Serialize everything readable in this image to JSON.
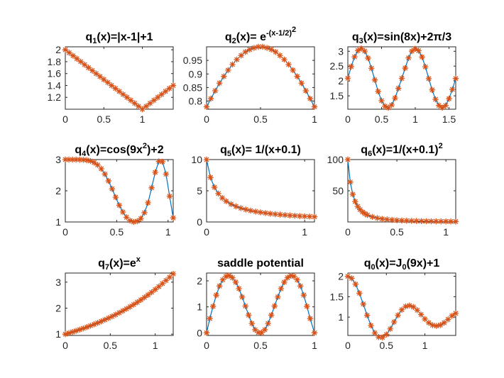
{
  "figure": {
    "background": "#ffffff"
  },
  "style": {
    "line_color": "#0072bd",
    "marker_color": "#d95319",
    "marker_symbol": "*",
    "axes_color": "#262626"
  },
  "chart_data": [
    {
      "type": "line",
      "title": "q_1(x)=|x-1|+1",
      "title_parts": [
        {
          "t": "q"
        },
        {
          "t": "1",
          "sub": true
        },
        {
          "t": "(x)=|x-1|+1"
        }
      ],
      "xlabel": "",
      "ylabel": "",
      "xlim": [
        0,
        1.4
      ],
      "ylim": [
        1.0,
        2.05
      ],
      "xticks": [
        0,
        0.5,
        1
      ],
      "xtick_labels": [
        "0",
        "0.5",
        "1"
      ],
      "yticks": [
        1.2,
        1.4,
        1.6,
        1.8,
        2
      ],
      "ytick_labels": [
        "1.2",
        "1.4",
        "1.6",
        "1.8",
        "2"
      ],
      "x": [
        0,
        0.05,
        0.1,
        0.15,
        0.2,
        0.25,
        0.3,
        0.35,
        0.4,
        0.45,
        0.5,
        0.55,
        0.6,
        0.65,
        0.7,
        0.75,
        0.8,
        0.85,
        0.9,
        0.95,
        1.0,
        1.05,
        1.1,
        1.15,
        1.2,
        1.25,
        1.3,
        1.35,
        1.4
      ],
      "y": [
        2.0,
        1.95,
        1.9,
        1.85,
        1.8,
        1.75,
        1.7,
        1.65,
        1.6,
        1.55,
        1.5,
        1.45,
        1.4,
        1.35,
        1.3,
        1.25,
        1.2,
        1.15,
        1.1,
        1.05,
        1.0,
        1.05,
        1.1,
        1.15,
        1.2,
        1.25,
        1.3,
        1.35,
        1.4
      ]
    },
    {
      "type": "line",
      "title": "q_2(x)= e^-(x-1/2)^2",
      "title_parts": [
        {
          "t": "q"
        },
        {
          "t": "2",
          "sub": true
        },
        {
          "t": "(x)= e"
        },
        {
          "t": "-(x-1/2)",
          "sup": true
        },
        {
          "t": "2",
          "sup2": true
        }
      ],
      "xlabel": "",
      "ylabel": "",
      "xlim": [
        0,
        1
      ],
      "ylim": [
        0.77,
        1.0
      ],
      "xticks": [
        0,
        0.5,
        1
      ],
      "xtick_labels": [
        "0",
        "0.5",
        "1"
      ],
      "yticks": [
        0.8,
        0.85,
        0.9,
        0.95
      ],
      "ytick_labels": [
        "0.8",
        "0.85",
        "0.9",
        "0.95"
      ],
      "x": [
        0,
        0.04,
        0.08,
        0.12,
        0.16,
        0.2,
        0.24,
        0.28,
        0.32,
        0.36,
        0.4,
        0.44,
        0.48,
        0.52,
        0.56,
        0.6,
        0.64,
        0.68,
        0.72,
        0.76,
        0.8,
        0.84,
        0.88,
        0.92,
        0.96,
        1.0
      ],
      "y": [
        0.779,
        0.809,
        0.838,
        0.866,
        0.891,
        0.914,
        0.935,
        0.953,
        0.968,
        0.981,
        0.99,
        0.996,
        1.0,
        1.0,
        0.996,
        0.99,
        0.981,
        0.968,
        0.953,
        0.935,
        0.914,
        0.891,
        0.866,
        0.838,
        0.809,
        0.779
      ]
    },
    {
      "type": "line",
      "title": "q_3(x)=sin(8x)+2π/3",
      "title_parts": [
        {
          "t": "q"
        },
        {
          "t": "3",
          "sub": true
        },
        {
          "t": "(x)=sin(8x)+2π/3"
        }
      ],
      "xlabel": "",
      "ylabel": "",
      "xlim": [
        0,
        1.6
      ],
      "ylim": [
        1.05,
        3.15
      ],
      "xticks": [
        0,
        0.5,
        1,
        1.5
      ],
      "xtick_labels": [
        "0",
        "0.5",
        "1",
        "1.5"
      ],
      "yticks": [
        1.5,
        2,
        2.5,
        3
      ],
      "ytick_labels": [
        "1.5",
        "2",
        "2.5",
        "3"
      ],
      "x": [
        0,
        0.05,
        0.1,
        0.15,
        0.2,
        0.25,
        0.3,
        0.35,
        0.4,
        0.45,
        0.5,
        0.55,
        0.6,
        0.65,
        0.7,
        0.75,
        0.8,
        0.85,
        0.9,
        0.95,
        1.0,
        1.05,
        1.1,
        1.15,
        1.2,
        1.25,
        1.3,
        1.35,
        1.4,
        1.45,
        1.5,
        1.55,
        1.6
      ],
      "y": [
        2.094,
        2.484,
        2.812,
        3.026,
        3.094,
        3.004,
        2.77,
        2.429,
        2.036,
        1.648,
        1.337,
        1.151,
        1.098,
        1.192,
        1.426,
        1.752,
        2.088,
        2.433,
        2.777,
        3.005,
        3.084,
        3.019,
        2.806,
        2.476,
        2.08,
        1.7,
        1.383,
        1.177,
        1.102,
        1.177,
        1.404,
        1.716,
        2.083
      ]
    },
    {
      "type": "line",
      "title": "q_4(x)=cos(9x^2)+2",
      "title_parts": [
        {
          "t": "q"
        },
        {
          "t": "4",
          "sub": true
        },
        {
          "t": "(x)=cos(9x"
        },
        {
          "t": "2",
          "sup": true
        },
        {
          "t": ")+2"
        }
      ],
      "xlabel": "",
      "ylabel": "",
      "xlim": [
        0,
        1.05
      ],
      "ylim": [
        1.0,
        3.0
      ],
      "xticks": [
        0,
        0.5,
        1
      ],
      "xtick_labels": [
        "0",
        "0.5",
        "1"
      ],
      "yticks": [
        1,
        2,
        3
      ],
      "ytick_labels": [
        "1",
        "2",
        "3"
      ],
      "x": [
        0,
        0.035,
        0.07,
        0.105,
        0.14,
        0.175,
        0.21,
        0.245,
        0.28,
        0.315,
        0.35,
        0.385,
        0.42,
        0.455,
        0.49,
        0.525,
        0.56,
        0.595,
        0.63,
        0.665,
        0.7,
        0.735,
        0.77,
        0.805,
        0.84,
        0.875,
        0.91,
        0.945,
        0.98,
        1.015,
        1.05
      ],
      "y": [
        3.0,
        3.0,
        3.0,
        2.999,
        2.997,
        2.992,
        2.98,
        2.954,
        2.906,
        2.827,
        2.705,
        2.535,
        2.317,
        2.063,
        1.793,
        1.535,
        1.318,
        1.151,
        1.044,
        1.003,
        1.025,
        1.111,
        1.297,
        1.617,
        2.095,
        2.591,
        2.942,
        2.932,
        2.534,
        1.827,
        1.131
      ]
    },
    {
      "type": "line",
      "title": "q_5(x)= 1/(x+0.1)",
      "title_parts": [
        {
          "t": "q"
        },
        {
          "t": "5",
          "sub": true
        },
        {
          "t": "(x)= 1/(x+0.1)"
        }
      ],
      "xlabel": "",
      "ylabel": "",
      "xlim": [
        0,
        1.1
      ],
      "ylim": [
        0,
        10
      ],
      "xticks": [
        0,
        1
      ],
      "xtick_labels": [
        "0",
        "1"
      ],
      "yticks": [
        0,
        5,
        10
      ],
      "ytick_labels": [
        "0",
        "5",
        "10"
      ],
      "x": [
        0,
        0.04,
        0.08,
        0.12,
        0.16,
        0.2,
        0.25,
        0.3,
        0.35,
        0.4,
        0.45,
        0.5,
        0.55,
        0.6,
        0.65,
        0.7,
        0.75,
        0.8,
        0.85,
        0.9,
        0.95,
        1.0,
        1.05,
        1.1
      ],
      "y": [
        10.0,
        7.14,
        5.56,
        4.55,
        3.85,
        3.33,
        2.86,
        2.5,
        2.22,
        2.0,
        1.82,
        1.67,
        1.54,
        1.43,
        1.33,
        1.25,
        1.18,
        1.11,
        1.05,
        1.0,
        0.95,
        0.91,
        0.87,
        0.83
      ]
    },
    {
      "type": "line",
      "title": "q_6(x)=1/(x+0.1)^2",
      "title_parts": [
        {
          "t": "q"
        },
        {
          "t": "6",
          "sub": true
        },
        {
          "t": "(x)=1/(x+0.1)"
        },
        {
          "t": "2",
          "sup": true
        }
      ],
      "xlabel": "",
      "ylabel": "",
      "xlim": [
        0,
        1.1
      ],
      "ylim": [
        0,
        100
      ],
      "xticks": [
        0,
        0.5,
        1
      ],
      "xtick_labels": [
        "0",
        "0.5",
        "1"
      ],
      "yticks": [
        50,
        100
      ],
      "ytick_labels": [
        "50",
        "100"
      ],
      "x": [
        0,
        0.025,
        0.05,
        0.075,
        0.1,
        0.125,
        0.15,
        0.175,
        0.2,
        0.25,
        0.3,
        0.35,
        0.4,
        0.45,
        0.5,
        0.55,
        0.6,
        0.65,
        0.7,
        0.75,
        0.8,
        0.85,
        0.9,
        0.95,
        1.0,
        1.05,
        1.1
      ],
      "y": [
        100.0,
        64.0,
        44.4,
        32.7,
        25.0,
        19.8,
        16.0,
        13.2,
        11.1,
        8.16,
        6.25,
        4.94,
        4.0,
        3.31,
        2.78,
        2.37,
        2.04,
        1.78,
        1.56,
        1.38,
        1.23,
        1.11,
        1.0,
        0.91,
        0.83,
        0.76,
        0.69
      ]
    },
    {
      "type": "line",
      "title": "q_7(x)=e^x",
      "title_parts": [
        {
          "t": "q"
        },
        {
          "t": "7",
          "sub": true
        },
        {
          "t": "(x)=e"
        },
        {
          "t": "x",
          "sup": true
        }
      ],
      "xlabel": "",
      "ylabel": "",
      "xlim": [
        0,
        1.2
      ],
      "ylim": [
        0.95,
        3.35
      ],
      "xticks": [
        0,
        0.5,
        1
      ],
      "xtick_labels": [
        "0",
        "0.5",
        "1"
      ],
      "yticks": [
        1,
        2,
        3
      ],
      "ytick_labels": [
        "1",
        "2",
        "3"
      ],
      "x": [
        0,
        0.04,
        0.08,
        0.12,
        0.16,
        0.2,
        0.24,
        0.28,
        0.32,
        0.36,
        0.4,
        0.44,
        0.48,
        0.52,
        0.56,
        0.6,
        0.64,
        0.68,
        0.72,
        0.76,
        0.8,
        0.84,
        0.88,
        0.92,
        0.96,
        1.0,
        1.04,
        1.08,
        1.12,
        1.16,
        1.2
      ],
      "y": [
        1.0,
        1.041,
        1.083,
        1.127,
        1.174,
        1.221,
        1.271,
        1.323,
        1.377,
        1.433,
        1.492,
        1.553,
        1.616,
        1.682,
        1.751,
        1.822,
        1.896,
        1.974,
        2.054,
        2.138,
        2.226,
        2.316,
        2.411,
        2.509,
        2.612,
        2.718,
        2.829,
        2.945,
        3.065,
        3.19,
        3.32
      ]
    },
    {
      "type": "line",
      "title": "saddle potential",
      "title_parts": [
        {
          "t": "saddle potential"
        }
      ],
      "xlabel": "",
      "ylabel": "",
      "xlim": [
        0,
        1
      ],
      "ylim": [
        -0.1,
        2.3
      ],
      "xticks": [
        0,
        0.5,
        1
      ],
      "xtick_labels": [
        "0",
        "0.5",
        "1"
      ],
      "yticks": [
        0,
        1,
        2
      ],
      "ytick_labels": [
        "0",
        "1",
        "2"
      ],
      "x": [
        0,
        0.03,
        0.06,
        0.09,
        0.12,
        0.15,
        0.18,
        0.21,
        0.24,
        0.27,
        0.3,
        0.33,
        0.36,
        0.39,
        0.42,
        0.45,
        0.48,
        0.51,
        0.54,
        0.57,
        0.6,
        0.63,
        0.66,
        0.69,
        0.72,
        0.75,
        0.78,
        0.81,
        0.84,
        0.87,
        0.9,
        0.93,
        0.96,
        1.0
      ],
      "y": [
        0.0,
        0.55,
        1.02,
        1.45,
        1.8,
        2.04,
        2.17,
        2.2,
        2.12,
        1.95,
        1.7,
        1.38,
        1.03,
        0.68,
        0.36,
        0.12,
        0.01,
        0.01,
        0.12,
        0.36,
        0.68,
        1.03,
        1.38,
        1.7,
        1.95,
        2.12,
        2.2,
        2.17,
        2.04,
        1.8,
        1.45,
        1.02,
        0.55,
        0.0
      ]
    },
    {
      "type": "line",
      "title": "q_0(x)=J_0(9x)+1",
      "title_parts": [
        {
          "t": "q"
        },
        {
          "t": "0",
          "sub": true
        },
        {
          "t": "(x)=J"
        },
        {
          "t": "0",
          "sub": true
        },
        {
          "t": "(9x)+1"
        }
      ],
      "xlabel": "",
      "ylabel": "",
      "xlim": [
        0,
        1.4
      ],
      "ylim": [
        0.55,
        2.08
      ],
      "xticks": [
        0,
        0.5,
        1
      ],
      "xtick_labels": [
        "0",
        "0.5",
        "1"
      ],
      "yticks": [
        1,
        1.5,
        2
      ],
      "ytick_labels": [
        "1",
        "1.5",
        "2"
      ],
      "x": [
        0,
        0.05,
        0.1,
        0.15,
        0.2,
        0.25,
        0.3,
        0.35,
        0.4,
        0.45,
        0.5,
        0.55,
        0.6,
        0.65,
        0.7,
        0.75,
        0.8,
        0.85,
        0.9,
        0.95,
        1.0,
        1.05,
        1.1,
        1.15,
        1.2,
        1.25,
        1.3,
        1.35,
        1.4
      ],
      "y": [
        2.0,
        1.951,
        1.808,
        1.586,
        1.32,
        1.044,
        0.794,
        0.611,
        0.511,
        0.5,
        0.573,
        0.711,
        0.88,
        1.046,
        1.18,
        1.261,
        1.283,
        1.249,
        1.17,
        1.064,
        0.953,
        0.86,
        0.802,
        0.784,
        0.805,
        0.862,
        0.944,
        1.03,
        1.093
      ]
    }
  ]
}
